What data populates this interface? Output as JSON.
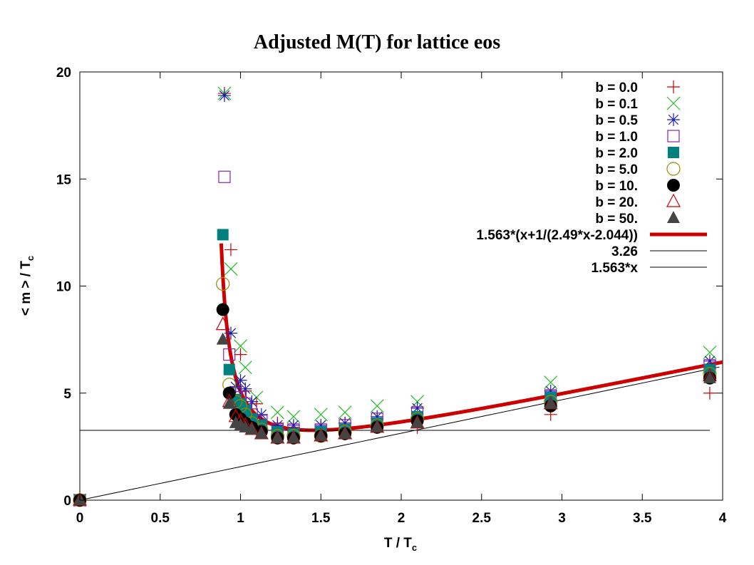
{
  "chart_data": {
    "type": "scatter",
    "title": "Adjusted M(T) for lattice eos",
    "xlabel": "T / T",
    "xlabel_sub": "c",
    "ylabel": "< m > / T",
    "ylabel_sub": "c",
    "xlim": [
      0,
      4
    ],
    "ylim": [
      0,
      20
    ],
    "xticks": [
      0,
      0.5,
      1,
      1.5,
      2,
      2.5,
      3,
      3.5,
      4
    ],
    "xtick_labels": [
      "0",
      "0.5",
      "1",
      "1.5",
      "2",
      "2.5",
      "3",
      "3.5",
      "4"
    ],
    "yticks": [
      0,
      5,
      10,
      15,
      20
    ],
    "ytick_labels": [
      "0",
      "5",
      "10",
      "15",
      "20"
    ],
    "legend_position": "top-right",
    "series": [
      {
        "name": "b = 0.0",
        "marker": "plus",
        "color": "#cc0000",
        "x": [
          0,
          0.9,
          0.94,
          1.0,
          1.03,
          1.1,
          1.23,
          1.33,
          1.5,
          1.65,
          1.85,
          2.1,
          2.93,
          3.92
        ],
        "y": [
          0,
          19.0,
          11.7,
          6.8,
          5.1,
          4.5,
          3.6,
          3.4,
          3.4,
          3.6,
          3.8,
          3.4,
          4.0,
          5.0
        ]
      },
      {
        "name": "b = 0.1",
        "marker": "x",
        "color": "#22bb22",
        "x": [
          0,
          0.9,
          0.94,
          1.0,
          1.03,
          1.1,
          1.23,
          1.33,
          1.5,
          1.65,
          1.85,
          2.1,
          2.93,
          3.92
        ],
        "y": [
          0,
          19.0,
          10.8,
          7.2,
          6.2,
          4.8,
          4.1,
          3.9,
          4.0,
          4.1,
          4.4,
          4.6,
          5.5,
          6.9
        ]
      },
      {
        "name": "b = 0.5",
        "marker": "star",
        "color": "#1a1aaa",
        "x": [
          0,
          0.9,
          0.94,
          0.97,
          1.0,
          1.03,
          1.07,
          1.13,
          1.23,
          1.33,
          1.5,
          1.65,
          1.85,
          2.1,
          2.93,
          3.92
        ],
        "y": [
          0,
          18.9,
          7.8,
          5.3,
          5.6,
          5.2,
          4.6,
          4.0,
          3.5,
          3.5,
          3.5,
          3.6,
          3.9,
          4.3,
          5.1,
          6.5
        ]
      },
      {
        "name": "b = 1.0",
        "marker": "square-open",
        "color": "#8822aa",
        "x": [
          0,
          0.9,
          0.93,
          0.97,
          1.0,
          1.03,
          1.07,
          1.13,
          1.23,
          1.33,
          1.5,
          1.65,
          1.85,
          2.1,
          2.93,
          3.92
        ],
        "y": [
          0,
          15.1,
          6.8,
          5.0,
          4.8,
          4.5,
          4.0,
          3.7,
          3.3,
          3.3,
          3.3,
          3.5,
          3.8,
          4.1,
          4.9,
          6.3
        ]
      },
      {
        "name": "b = 2.0",
        "marker": "square-filled",
        "color": "#00807f",
        "x": [
          0,
          0.89,
          0.93,
          0.97,
          1.0,
          1.03,
          1.07,
          1.13,
          1.23,
          1.33,
          1.5,
          1.65,
          1.85,
          2.1,
          2.93,
          3.92
        ],
        "y": [
          0,
          12.4,
          6.1,
          4.7,
          4.5,
          4.2,
          3.8,
          3.5,
          3.2,
          3.1,
          3.2,
          3.3,
          3.6,
          3.9,
          4.8,
          6.1
        ]
      },
      {
        "name": "b = 5.0",
        "marker": "circle-open",
        "color": "#9a8a00",
        "x": [
          0,
          0.89,
          0.93,
          0.97,
          1.0,
          1.03,
          1.07,
          1.13,
          1.23,
          1.33,
          1.5,
          1.65,
          1.85,
          2.1,
          2.93,
          3.92
        ],
        "y": [
          0,
          10.1,
          5.4,
          4.6,
          4.4,
          4.0,
          3.6,
          3.3,
          3.0,
          3.0,
          3.0,
          3.2,
          3.5,
          3.8,
          4.6,
          5.9
        ]
      },
      {
        "name": "b = 10.",
        "marker": "circle-filled",
        "color": "#000000",
        "x": [
          0,
          0.89,
          0.93,
          0.97,
          1.0,
          1.03,
          1.07,
          1.13,
          1.23,
          1.33,
          1.5,
          1.65,
          1.85,
          2.1,
          2.93,
          3.92
        ],
        "y": [
          0,
          8.9,
          5.0,
          4.0,
          3.8,
          3.6,
          3.4,
          3.2,
          2.9,
          2.9,
          3.0,
          3.1,
          3.4,
          3.7,
          4.4,
          5.7
        ]
      },
      {
        "name": "b = 20.",
        "marker": "triangle-open",
        "color": "#cc0000",
        "x": [
          0,
          0.89,
          0.93,
          0.97,
          1.0,
          1.03,
          1.07,
          1.13,
          1.23,
          1.33,
          1.5,
          1.65,
          1.85,
          2.1,
          2.93,
          3.92
        ],
        "y": [
          0,
          8.2,
          4.6,
          3.9,
          3.7,
          3.5,
          3.3,
          3.1,
          2.9,
          2.9,
          3.0,
          3.1,
          3.4,
          3.6,
          4.5,
          5.8
        ]
      },
      {
        "name": "b = 50.",
        "marker": "triangle-filled",
        "color": "#444444",
        "x": [
          0,
          0.89,
          0.93,
          0.97,
          1.0,
          1.03,
          1.07,
          1.13,
          1.23,
          1.33,
          1.5,
          1.65,
          1.85,
          2.1,
          2.93,
          3.92
        ],
        "y": [
          0,
          7.5,
          4.5,
          3.6,
          3.5,
          3.4,
          3.3,
          3.1,
          2.9,
          2.9,
          3.0,
          3.1,
          3.4,
          3.6,
          4.5,
          5.7
        ]
      }
    ],
    "curves": [
      {
        "name": "1.563*(x+1/(2.49*x-2.044))",
        "type": "function",
        "color": "#cc0000",
        "width": "thick",
        "x_from": 0.88,
        "x_to": 4.01
      },
      {
        "name": "3.26",
        "type": "constant",
        "value": 3.26,
        "color": "#000000",
        "width": "thin",
        "x_from": 0,
        "x_to": 3.92
      },
      {
        "name": "1.563*x",
        "type": "linear",
        "slope": 1.563,
        "color": "#000000",
        "width": "thin",
        "x_from": 0,
        "x_to": 3.98
      }
    ]
  }
}
